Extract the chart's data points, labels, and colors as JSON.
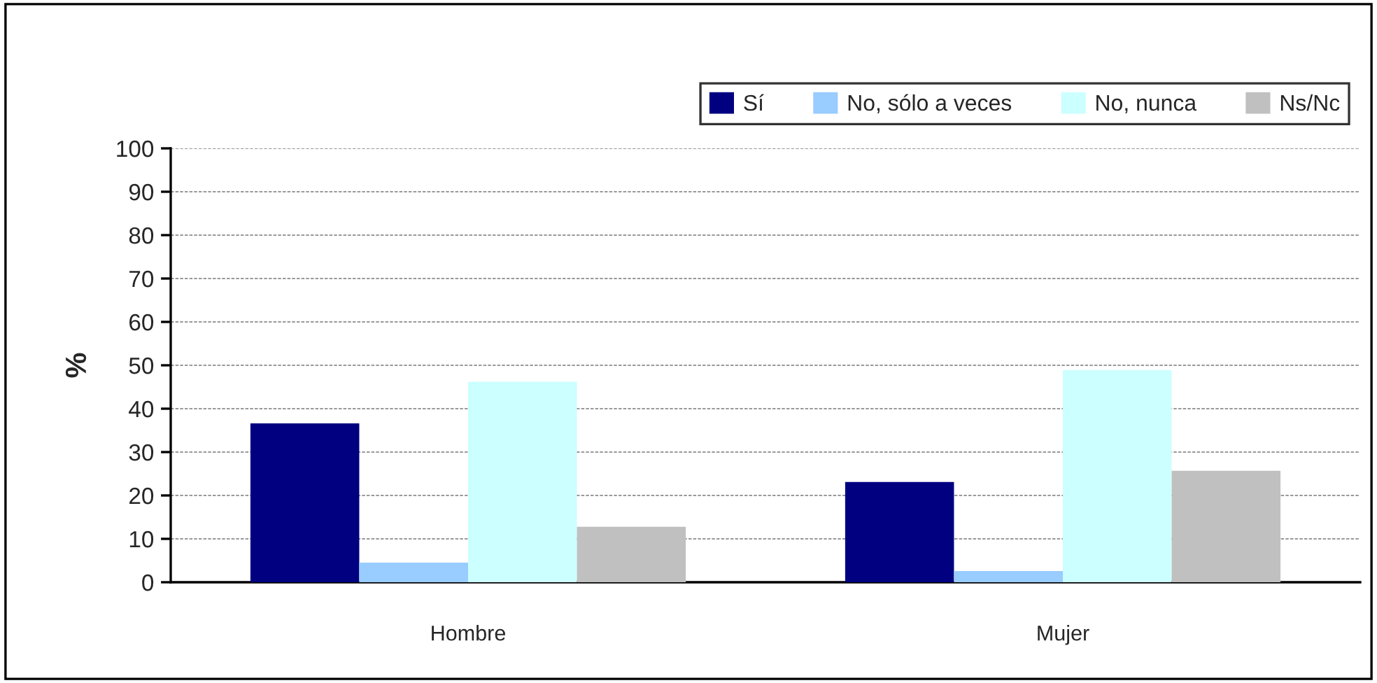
{
  "chart_data": {
    "type": "bar",
    "ylabel": "%",
    "categories": [
      "Hombre",
      "Mujer"
    ],
    "series": [
      {
        "name": "Sí",
        "color": "#000080",
        "values": [
          36.6,
          23.1
        ]
      },
      {
        "name": "No, sólo a veces",
        "color": "#99ccff",
        "values": [
          4.5,
          2.6
        ]
      },
      {
        "name": "No, nunca",
        "color": "#ccffff",
        "values": [
          46.2,
          48.9
        ]
      },
      {
        "name": "Ns/Nc",
        "color": "#c0c0c0",
        "values": [
          12.8,
          25.7
        ]
      }
    ],
    "ylim": [
      0,
      100
    ],
    "yticks": [
      0,
      10,
      20,
      30,
      40,
      50,
      60,
      70,
      80,
      90,
      100
    ],
    "grid": "y",
    "legend": "top right"
  }
}
